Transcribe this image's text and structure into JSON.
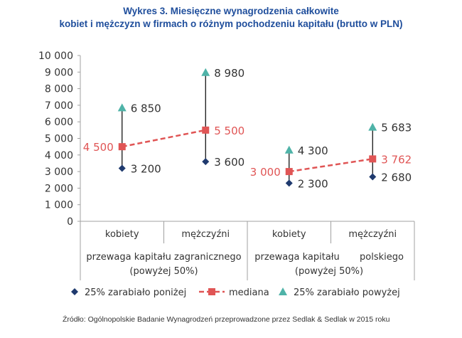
{
  "title_line1": "Wykres 3. Miesięczne wynagrodzenia całkowite",
  "title_line2": "kobiet i mężczyzn w firmach o różnym pochodzeniu kapitału (brutto w PLN)",
  "source": "Źródło: Ogólnopolskie Badanie Wynagrodzeń przeprowadzone przez Sedlak & Sedlak w 2015 roku",
  "colors": {
    "low": "#1f3a6e",
    "median": "#e05555",
    "high": "#4fb3a8",
    "axis": "#a0a0a0",
    "text": "#333333"
  },
  "chart_data": {
    "type": "scatter",
    "title": "Wykres 3. Miesięczne wynagrodzenia całkowite kobiet i mężczyzn w firmach o różnym pochodzeniu kapitału (brutto w PLN)",
    "ylim": [
      0,
      10000
    ],
    "yticks": [
      "0",
      "1 000",
      "2 000",
      "3 000",
      "4 000",
      "5 000",
      "6 000",
      "7 000",
      "8 000",
      "9 000",
      "10 000"
    ],
    "categories": [
      "kobiety",
      "mężczyźni",
      "kobiety",
      "mężczyźni"
    ],
    "groups": [
      {
        "label_line1": "przewaga kapitału zagranicznego",
        "label_line2": "(powyżej 50%)"
      },
      {
        "label_line1": "przewaga kapitału",
        "label_line1b": "polskiego",
        "label_line2": "(powyżej 50%)"
      }
    ],
    "series": [
      {
        "name": "25% zarabiało poniżej",
        "values": [
          3200,
          3600,
          2300,
          2680
        ],
        "labels": [
          "3 200",
          "3 600",
          "2 300",
          "2 680"
        ]
      },
      {
        "name": "mediana",
        "values": [
          4500,
          5500,
          3000,
          3762
        ],
        "labels": [
          "4 500",
          "5 500",
          "3 000",
          "3 762"
        ]
      },
      {
        "name": "25% zarabiało powyżej",
        "values": [
          6850,
          8980,
          4300,
          5683
        ],
        "labels": [
          "6 850",
          "8 980",
          "4 300",
          "5 683"
        ]
      }
    ],
    "legend_position": "bottom"
  }
}
